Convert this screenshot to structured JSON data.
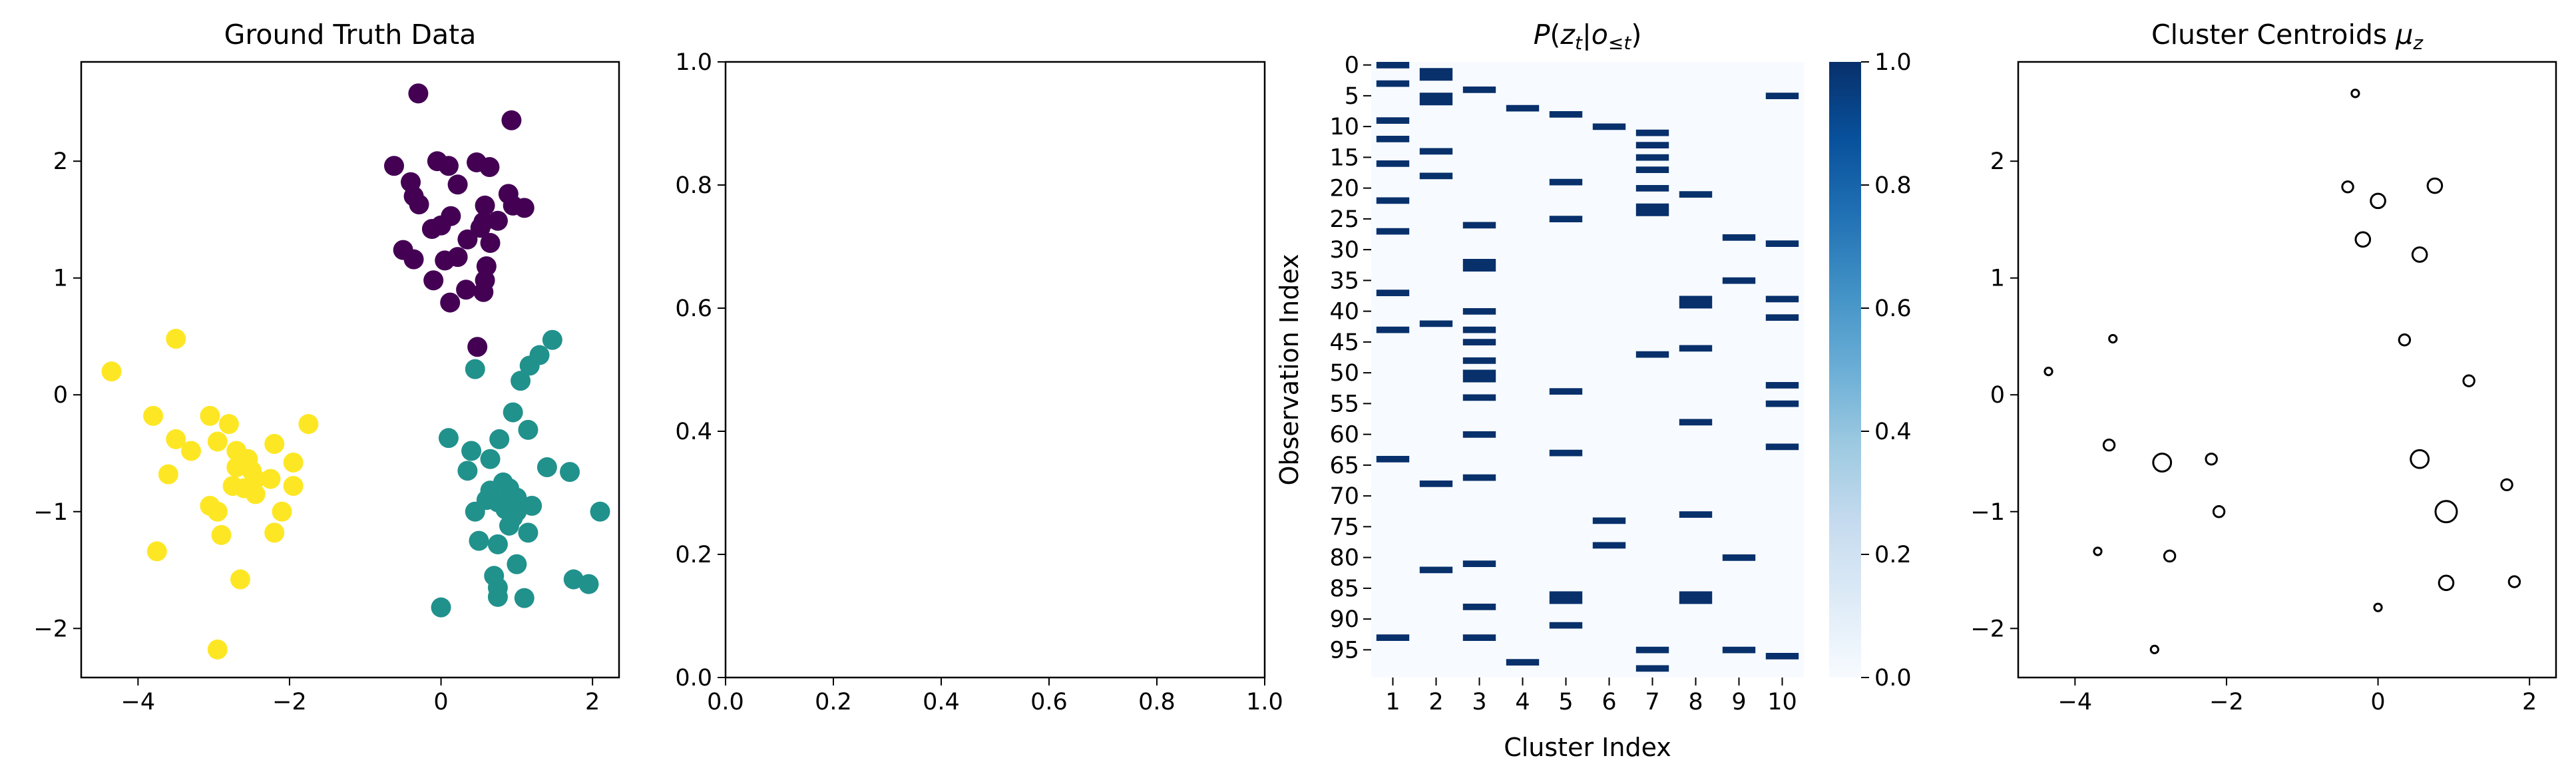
{
  "chart_data": [
    {
      "type": "scatter",
      "title": "Ground Truth Data",
      "xlabel": "",
      "ylabel": "",
      "xlim": [
        -4.75,
        2.35
      ],
      "ylim": [
        -2.42,
        2.85
      ],
      "xticks": [
        -4,
        -2,
        0,
        2
      ],
      "yticks": [
        -2,
        -1,
        0,
        1,
        2
      ],
      "tick_labels_x": [
        "−4",
        "−2",
        "0",
        "2"
      ],
      "tick_labels_y": [
        "−2",
        "−1",
        "0",
        "1",
        "2"
      ],
      "series": [
        {
          "color": "#440154",
          "points": [
            [
              -0.3,
              2.58
            ],
            [
              0.93,
              2.35
            ],
            [
              -0.62,
              1.96
            ],
            [
              -0.05,
              2.0
            ],
            [
              0.1,
              1.96
            ],
            [
              0.47,
              1.99
            ],
            [
              0.64,
              1.95
            ],
            [
              -0.4,
              1.82
            ],
            [
              0.22,
              1.8
            ],
            [
              -0.36,
              1.7
            ],
            [
              -0.29,
              1.63
            ],
            [
              0.89,
              1.72
            ],
            [
              0.95,
              1.62
            ],
            [
              1.1,
              1.6
            ],
            [
              0.58,
              1.62
            ],
            [
              0.13,
              1.53
            ],
            [
              0.56,
              1.48
            ],
            [
              0.75,
              1.49
            ],
            [
              0.52,
              1.43
            ],
            [
              -0.12,
              1.42
            ],
            [
              0.0,
              1.45
            ],
            [
              0.35,
              1.33
            ],
            [
              0.65,
              1.3
            ],
            [
              -0.5,
              1.24
            ],
            [
              -0.36,
              1.16
            ],
            [
              0.05,
              1.15
            ],
            [
              0.22,
              1.18
            ],
            [
              0.6,
              1.1
            ],
            [
              0.58,
              0.98
            ],
            [
              -0.1,
              0.98
            ],
            [
              0.33,
              0.9
            ],
            [
              0.56,
              0.88
            ],
            [
              0.12,
              0.79
            ],
            [
              0.48,
              0.41
            ]
          ]
        },
        {
          "color": "#21918c",
          "points": [
            [
              1.47,
              0.47
            ],
            [
              1.3,
              0.34
            ],
            [
              1.17,
              0.25
            ],
            [
              0.45,
              0.22
            ],
            [
              1.05,
              0.12
            ],
            [
              0.95,
              -0.15
            ],
            [
              0.77,
              -0.38
            ],
            [
              1.15,
              -0.3
            ],
            [
              0.1,
              -0.37
            ],
            [
              0.4,
              -0.48
            ],
            [
              0.65,
              -0.55
            ],
            [
              1.4,
              -0.62
            ],
            [
              1.7,
              -0.66
            ],
            [
              0.35,
              -0.65
            ],
            [
              0.82,
              -0.75
            ],
            [
              0.9,
              -0.8
            ],
            [
              0.65,
              -0.82
            ],
            [
              0.6,
              -0.9
            ],
            [
              1.0,
              -0.88
            ],
            [
              0.75,
              -0.92
            ],
            [
              0.85,
              -0.98
            ],
            [
              1.0,
              -1.0
            ],
            [
              1.2,
              -0.95
            ],
            [
              0.45,
              -1.0
            ],
            [
              0.95,
              -1.05
            ],
            [
              2.1,
              -1.0
            ],
            [
              0.9,
              -1.12
            ],
            [
              1.15,
              -1.18
            ],
            [
              0.75,
              -1.28
            ],
            [
              0.5,
              -1.25
            ],
            [
              1.0,
              -1.45
            ],
            [
              0.7,
              -1.55
            ],
            [
              1.75,
              -1.58
            ],
            [
              0.75,
              -1.65
            ],
            [
              1.95,
              -1.62
            ],
            [
              0.75,
              -1.73
            ],
            [
              1.1,
              -1.74
            ],
            [
              0.0,
              -1.82
            ]
          ]
        },
        {
          "color": "#fde725",
          "points": [
            [
              -3.5,
              0.48
            ],
            [
              -4.35,
              0.2
            ],
            [
              -1.75,
              -0.25
            ],
            [
              -3.8,
              -0.18
            ],
            [
              -2.2,
              -0.42
            ],
            [
              -3.05,
              -0.18
            ],
            [
              -2.8,
              -0.25
            ],
            [
              -3.5,
              -0.38
            ],
            [
              -3.3,
              -0.48
            ],
            [
              -2.95,
              -0.4
            ],
            [
              -2.7,
              -0.48
            ],
            [
              -2.55,
              -0.55
            ],
            [
              -1.95,
              -0.58
            ],
            [
              -2.7,
              -0.62
            ],
            [
              -2.5,
              -0.65
            ],
            [
              -2.45,
              -0.72
            ],
            [
              -2.25,
              -0.72
            ],
            [
              -3.6,
              -0.68
            ],
            [
              -2.75,
              -0.78
            ],
            [
              -2.6,
              -0.8
            ],
            [
              -2.45,
              -0.85
            ],
            [
              -1.95,
              -0.78
            ],
            [
              -3.05,
              -0.95
            ],
            [
              -2.95,
              -1.0
            ],
            [
              -2.1,
              -1.0
            ],
            [
              -2.2,
              -1.18
            ],
            [
              -2.9,
              -1.2
            ],
            [
              -3.75,
              -1.34
            ],
            [
              -2.65,
              -1.58
            ],
            [
              -2.95,
              -2.18
            ]
          ]
        }
      ]
    },
    {
      "type": "scatter",
      "title": "",
      "xlim": [
        0.0,
        1.0
      ],
      "ylim": [
        0.0,
        1.0
      ],
      "xticks": [
        0.0,
        0.2,
        0.4,
        0.6,
        0.8,
        1.0
      ],
      "yticks": [
        0.0,
        0.2,
        0.4,
        0.6,
        0.8,
        1.0
      ],
      "tick_labels_x": [
        "0.0",
        "0.2",
        "0.4",
        "0.6",
        "0.8",
        "1.0"
      ],
      "tick_labels_y": [
        "0.0",
        "0.2",
        "0.4",
        "0.6",
        "0.8",
        "1.0"
      ],
      "series": []
    },
    {
      "type": "heatmap",
      "title": "P(zt|o≤t)",
      "xlabel": "Cluster Index",
      "ylabel": "Observation Index",
      "n_rows": 100,
      "columns": [
        "1",
        "2",
        "3",
        "4",
        "5",
        "6",
        "7",
        "8",
        "9",
        "10"
      ],
      "yticks": [
        0,
        5,
        10,
        15,
        20,
        25,
        30,
        35,
        40,
        45,
        50,
        55,
        60,
        65,
        70,
        75,
        80,
        85,
        90,
        95
      ],
      "colormap": "Blues",
      "vmin": 0.0,
      "vmax": 1.0,
      "colorbar_ticks": [
        "0.0",
        "0.2",
        "0.4",
        "0.6",
        "0.8",
        "1.0"
      ],
      "active_cells": {
        "1": [
          0,
          3,
          9,
          12,
          16,
          22,
          27,
          37,
          43,
          64,
          93
        ],
        "2": [
          1,
          2,
          5,
          6,
          14,
          18,
          42,
          68,
          82
        ],
        "3": [
          4,
          26,
          32,
          33,
          40,
          43,
          45,
          48,
          50,
          51,
          54,
          60,
          67,
          81,
          88,
          93
        ],
        "4": [
          7,
          97
        ],
        "5": [
          8,
          19,
          25,
          53,
          63,
          86,
          87,
          91
        ],
        "6": [
          10,
          74,
          78
        ],
        "7": [
          11,
          13,
          15,
          17,
          20,
          23,
          24,
          47,
          95,
          98
        ],
        "8": [
          21,
          38,
          39,
          46,
          58,
          73,
          86,
          87
        ],
        "9": [
          28,
          35,
          80,
          95
        ],
        "10": [
          5,
          29,
          38,
          41,
          52,
          55,
          62,
          96
        ]
      }
    },
    {
      "type": "scatter",
      "title": "Cluster Centroids μz",
      "xlabel": "",
      "ylabel": "",
      "xlim": [
        -4.75,
        2.35
      ],
      "ylim": [
        -2.42,
        2.85
      ],
      "xticks": [
        -4,
        -2,
        0,
        2
      ],
      "yticks": [
        -2,
        -1,
        0,
        1,
        2
      ],
      "tick_labels_x": [
        "−4",
        "−2",
        "0",
        "2"
      ],
      "tick_labels_y": [
        "−2",
        "−1",
        "0",
        "1",
        "2"
      ],
      "marker": "open-circle",
      "points": [
        [
          -0.3,
          2.58,
          1
        ],
        [
          -0.4,
          1.78,
          2
        ],
        [
          0.0,
          1.66,
          3
        ],
        [
          0.75,
          1.79,
          3
        ],
        [
          -0.2,
          1.33,
          3
        ],
        [
          0.55,
          1.2,
          3
        ],
        [
          0.35,
          0.47,
          2
        ],
        [
          1.2,
          0.12,
          2
        ],
        [
          -3.5,
          0.48,
          1
        ],
        [
          -4.35,
          0.2,
          1
        ],
        [
          -3.55,
          -0.43,
          2
        ],
        [
          -2.85,
          -0.58,
          4
        ],
        [
          -2.2,
          -0.55,
          2
        ],
        [
          0.55,
          -0.55,
          4
        ],
        [
          1.7,
          -0.77,
          2
        ],
        [
          -2.1,
          -1.0,
          2
        ],
        [
          0.9,
          -1.0,
          5
        ],
        [
          -3.7,
          -1.34,
          1
        ],
        [
          -2.75,
          -1.38,
          2
        ],
        [
          0.9,
          -1.61,
          3
        ],
        [
          1.8,
          -1.6,
          2
        ],
        [
          0.0,
          -1.82,
          1
        ],
        [
          -2.95,
          -2.18,
          1
        ]
      ]
    }
  ]
}
